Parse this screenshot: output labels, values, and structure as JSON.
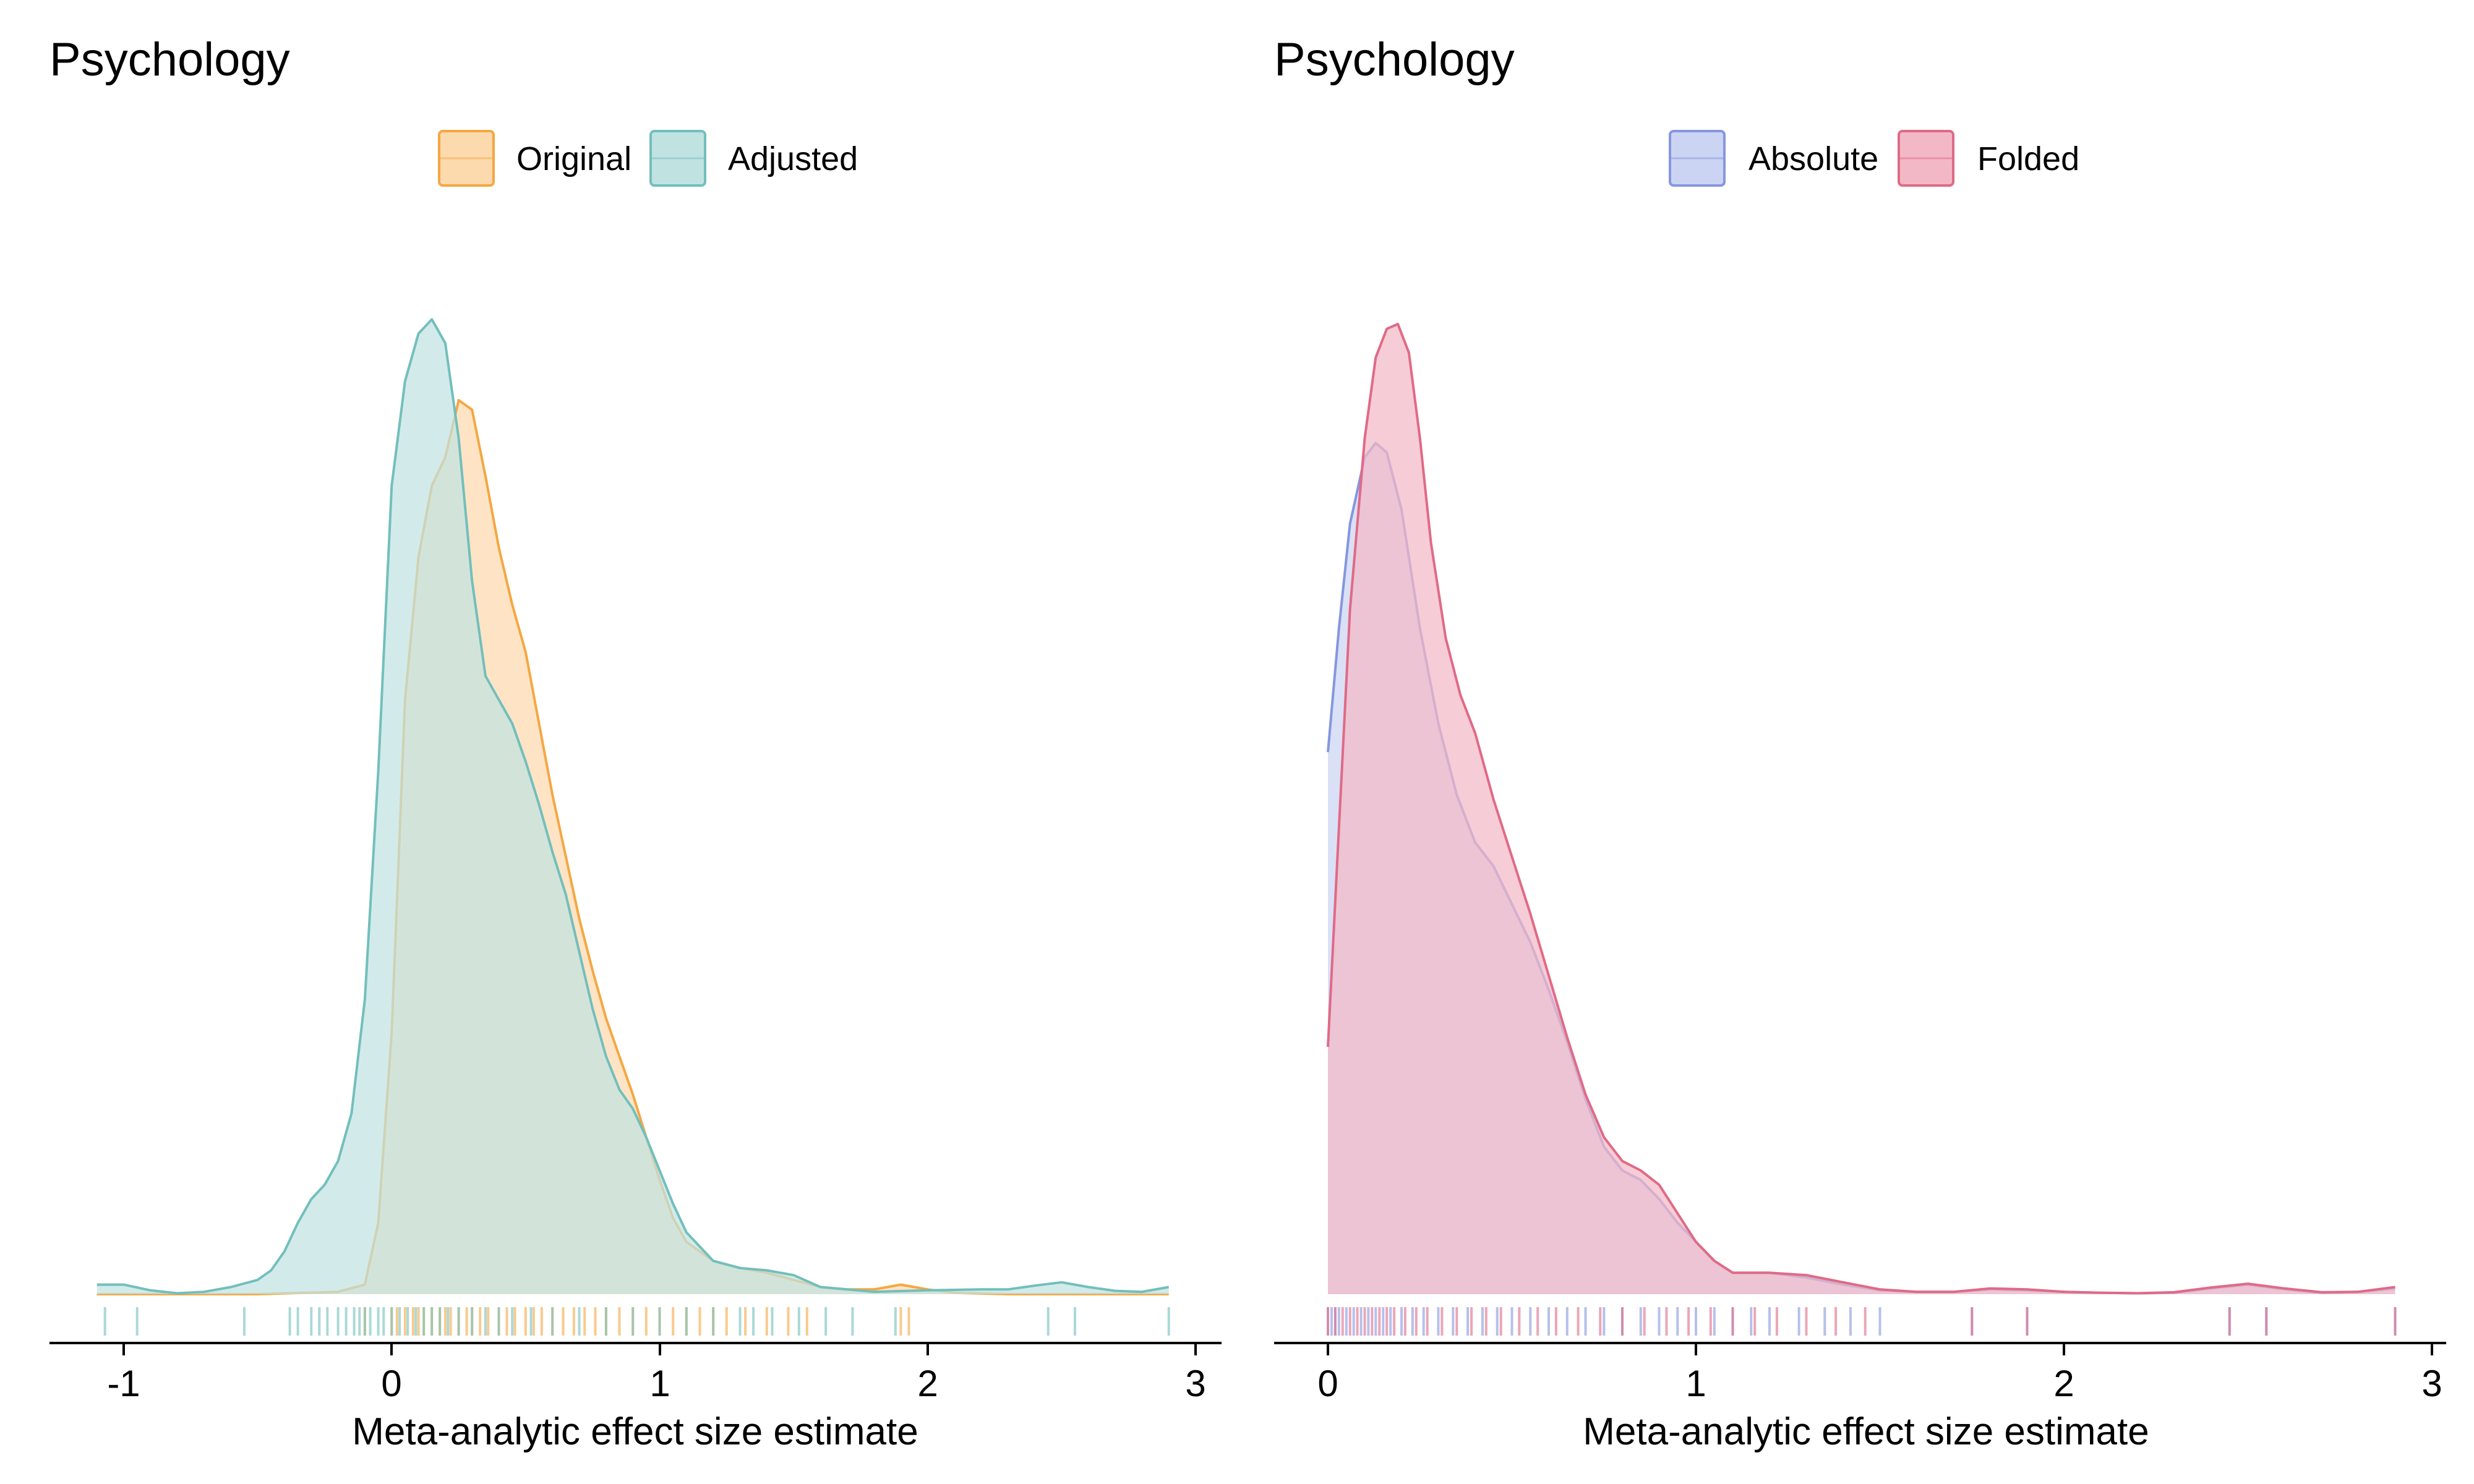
{
  "chart_data": [
    {
      "type": "area",
      "title": "Psychology",
      "xlabel": "Meta-analytic effect size estimate",
      "ylabel": "",
      "xlim": [
        -1.1,
        3.05
      ],
      "ylim": [
        0,
        2.1
      ],
      "xticks": [
        "-1",
        "0",
        "1",
        "2",
        "3"
      ],
      "legend_position": "top",
      "grid": false,
      "series": [
        {
          "name": "Original",
          "color": "#F5A742",
          "fill": "#FDD9AE",
          "x": [
            -1.1,
            -0.5,
            -0.2,
            -0.1,
            -0.05,
            0.0,
            0.05,
            0.1,
            0.15,
            0.2,
            0.25,
            0.3,
            0.35,
            0.4,
            0.45,
            0.5,
            0.55,
            0.6,
            0.65,
            0.7,
            0.75,
            0.8,
            0.85,
            0.9,
            0.95,
            1.0,
            1.05,
            1.1,
            1.2,
            1.3,
            1.4,
            1.5,
            1.6,
            1.7,
            1.8,
            1.9,
            2.0,
            2.1,
            2.3,
            2.5,
            2.7,
            2.9
          ],
          "y": [
            0.0,
            0.0,
            0.005,
            0.02,
            0.15,
            0.55,
            1.25,
            1.55,
            1.7,
            1.76,
            1.88,
            1.86,
            1.72,
            1.57,
            1.45,
            1.35,
            1.2,
            1.05,
            0.92,
            0.79,
            0.68,
            0.58,
            0.5,
            0.42,
            0.33,
            0.24,
            0.16,
            0.11,
            0.07,
            0.055,
            0.045,
            0.03,
            0.015,
            0.01,
            0.01,
            0.02,
            0.01,
            0.003,
            0.0,
            0.0,
            0.0,
            0.0
          ],
          "rug": [
            -0.1,
            0.0,
            0.02,
            0.05,
            0.08,
            0.1,
            0.12,
            0.15,
            0.18,
            0.2,
            0.22,
            0.25,
            0.28,
            0.3,
            0.33,
            0.36,
            0.4,
            0.43,
            0.46,
            0.5,
            0.53,
            0.56,
            0.6,
            0.64,
            0.68,
            0.72,
            0.76,
            0.8,
            0.85,
            0.9,
            0.95,
            1.0,
            1.05,
            1.1,
            1.15,
            1.2,
            1.25,
            1.32,
            1.4,
            1.48,
            1.55,
            1.9,
            1.93
          ]
        },
        {
          "name": "Adjusted",
          "color": "#72BFBC",
          "fill": "#C0E3E2",
          "x": [
            -1.1,
            -1.0,
            -0.9,
            -0.8,
            -0.7,
            -0.6,
            -0.5,
            -0.45,
            -0.4,
            -0.35,
            -0.3,
            -0.25,
            -0.2,
            -0.15,
            -0.1,
            -0.05,
            0.0,
            0.05,
            0.1,
            0.15,
            0.2,
            0.25,
            0.3,
            0.35,
            0.4,
            0.45,
            0.5,
            0.55,
            0.6,
            0.65,
            0.7,
            0.75,
            0.8,
            0.85,
            0.9,
            0.95,
            1.0,
            1.05,
            1.1,
            1.2,
            1.3,
            1.4,
            1.5,
            1.6,
            1.8,
            2.0,
            2.2,
            2.3,
            2.4,
            2.5,
            2.6,
            2.7,
            2.8,
            2.9
          ],
          "y": [
            0.02,
            0.02,
            0.008,
            0.002,
            0.005,
            0.015,
            0.03,
            0.05,
            0.09,
            0.15,
            0.2,
            0.23,
            0.28,
            0.38,
            0.62,
            1.1,
            1.7,
            1.92,
            2.02,
            2.05,
            2.0,
            1.8,
            1.5,
            1.3,
            1.25,
            1.2,
            1.12,
            1.03,
            0.93,
            0.84,
            0.72,
            0.6,
            0.5,
            0.43,
            0.39,
            0.33,
            0.26,
            0.19,
            0.13,
            0.07,
            0.055,
            0.05,
            0.04,
            0.015,
            0.005,
            0.008,
            0.01,
            0.01,
            0.018,
            0.025,
            0.015,
            0.007,
            0.005,
            0.015
          ],
          "rug": [
            -1.07,
            -0.95,
            -0.55,
            -0.38,
            -0.35,
            -0.3,
            -0.27,
            -0.24,
            -0.2,
            -0.17,
            -0.14,
            -0.12,
            -0.1,
            -0.08,
            -0.05,
            -0.03,
            0.0,
            0.03,
            0.06,
            0.09,
            0.12,
            0.15,
            0.18,
            0.21,
            0.25,
            0.3,
            0.35,
            0.4,
            0.45,
            0.52,
            0.6,
            0.7,
            0.8,
            0.9,
            1.0,
            1.1,
            1.2,
            1.3,
            1.35,
            1.42,
            1.52,
            1.62,
            1.72,
            1.88,
            2.45,
            2.55,
            2.9
          ]
        }
      ]
    },
    {
      "type": "area",
      "title": "Psychology",
      "xlabel": "Meta-analytic effect size estimate",
      "ylabel": "",
      "xlim": [
        -0.03,
        3.05
      ],
      "ylim": [
        0,
        2.1
      ],
      "xticks": [
        "0",
        "1",
        "2",
        "3"
      ],
      "legend_position": "top",
      "grid": false,
      "series": [
        {
          "name": "Absolute",
          "color": "#8596E0",
          "fill": "#CCD4F3",
          "x": [
            0.0,
            0.03,
            0.06,
            0.1,
            0.13,
            0.16,
            0.2,
            0.25,
            0.3,
            0.35,
            0.4,
            0.45,
            0.5,
            0.55,
            0.6,
            0.65,
            0.7,
            0.75,
            0.8,
            0.85,
            0.9,
            0.95,
            1.0,
            1.05,
            1.1,
            1.2,
            1.3,
            1.4,
            1.5,
            1.6,
            1.7,
            1.8,
            1.9,
            2.0,
            2.1,
            2.2,
            2.3,
            2.4,
            2.5,
            2.6,
            2.7,
            2.8,
            2.9
          ],
          "y": [
            1.14,
            1.4,
            1.62,
            1.76,
            1.79,
            1.77,
            1.65,
            1.4,
            1.2,
            1.05,
            0.95,
            0.9,
            0.82,
            0.74,
            0.64,
            0.53,
            0.41,
            0.31,
            0.26,
            0.24,
            0.2,
            0.15,
            0.11,
            0.07,
            0.045,
            0.045,
            0.035,
            0.02,
            0.008,
            0.005,
            0.005,
            0.01,
            0.008,
            0.005,
            0.003,
            0.002,
            0.003,
            0.012,
            0.02,
            0.01,
            0.003,
            0.005,
            0.012
          ],
          "rug": [
            0.0,
            0.01,
            0.02,
            0.03,
            0.05,
            0.07,
            0.09,
            0.11,
            0.13,
            0.15,
            0.17,
            0.2,
            0.23,
            0.26,
            0.3,
            0.34,
            0.38,
            0.42,
            0.46,
            0.5,
            0.55,
            0.6,
            0.65,
            0.7,
            0.75,
            0.8,
            0.85,
            0.9,
            0.95,
            1.0,
            1.05,
            1.1,
            1.15,
            1.2,
            1.28,
            1.35,
            1.42,
            1.5,
            1.75,
            1.9,
            2.45,
            2.55,
            2.9
          ]
        },
        {
          "name": "Folded",
          "color": "#E06A86",
          "fill": "#F2B8C6",
          "x": [
            0.0,
            0.03,
            0.06,
            0.1,
            0.13,
            0.16,
            0.19,
            0.22,
            0.25,
            0.28,
            0.32,
            0.36,
            0.4,
            0.45,
            0.5,
            0.55,
            0.6,
            0.65,
            0.7,
            0.75,
            0.8,
            0.85,
            0.9,
            0.95,
            1.0,
            1.05,
            1.1,
            1.2,
            1.3,
            1.4,
            1.5,
            1.6,
            1.7,
            1.8,
            1.9,
            2.0,
            2.1,
            2.2,
            2.3,
            2.4,
            2.5,
            2.6,
            2.7,
            2.8,
            2.9
          ],
          "y": [
            0.52,
            0.98,
            1.44,
            1.8,
            1.97,
            2.03,
            2.04,
            1.98,
            1.8,
            1.58,
            1.38,
            1.26,
            1.18,
            1.04,
            0.92,
            0.8,
            0.67,
            0.54,
            0.42,
            0.33,
            0.28,
            0.26,
            0.23,
            0.17,
            0.11,
            0.07,
            0.045,
            0.045,
            0.04,
            0.025,
            0.01,
            0.005,
            0.005,
            0.012,
            0.01,
            0.005,
            0.003,
            0.002,
            0.004,
            0.014,
            0.022,
            0.012,
            0.004,
            0.005,
            0.015
          ],
          "rug": [
            0.0,
            0.02,
            0.04,
            0.06,
            0.08,
            0.1,
            0.12,
            0.14,
            0.16,
            0.18,
            0.21,
            0.24,
            0.27,
            0.31,
            0.35,
            0.39,
            0.43,
            0.47,
            0.52,
            0.57,
            0.62,
            0.68,
            0.74,
            0.8,
            0.86,
            0.92,
            0.98,
            1.04,
            1.1,
            1.16,
            1.22,
            1.3,
            1.38,
            1.46,
            1.75,
            1.9,
            2.45,
            2.55,
            2.9
          ]
        }
      ]
    }
  ]
}
